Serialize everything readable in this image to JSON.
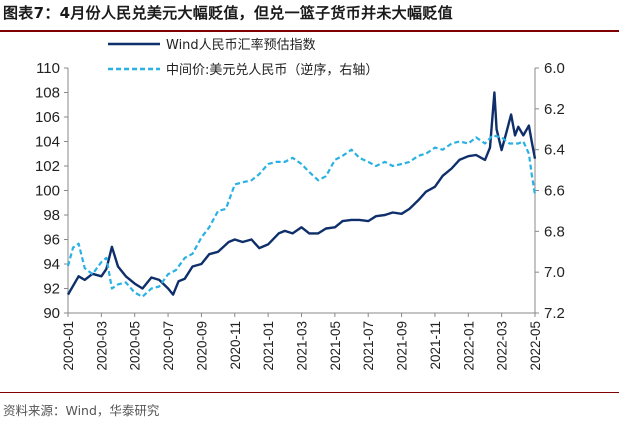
{
  "header": {
    "title": "图表7：4月份人民兑美元大幅贬值，但兑一篮子货币并未大幅贬值"
  },
  "footer": {
    "source": "资料来源：Wind，华泰研究"
  },
  "colors": {
    "primary_series": "#0f2f6b",
    "secondary_series": "#2ab1e3",
    "title_rule": "#7f0000"
  },
  "chart_data": {
    "type": "line",
    "title": "图表7：4月份人民兑美元大幅贬值，但兑一篮子货币并未大幅贬值",
    "legend_position": "top-center",
    "grid": false,
    "x_ticks": [
      "2020-01",
      "2020-03",
      "2020-05",
      "2020-07",
      "2020-09",
      "2020-11",
      "2021-01",
      "2021-03",
      "2021-05",
      "2021-07",
      "2021-09",
      "2021-11",
      "2022-01",
      "2022-03",
      "2022-05"
    ],
    "y_left": {
      "ticks": [
        90,
        92,
        94,
        96,
        98,
        100,
        102,
        104,
        106,
        108,
        110
      ],
      "range": [
        90,
        110
      ]
    },
    "y_right": {
      "ticks": [
        "6.0",
        "6.2",
        "6.4",
        "6.6",
        "6.8",
        "7.0",
        "7.2"
      ],
      "range": [
        6.0,
        7.2
      ],
      "inverted": true
    },
    "series": [
      {
        "name": "Wind人民币汇率预估指数",
        "axis": "left",
        "style": "solid",
        "points": [
          [
            "2020-01",
            91.5
          ],
          [
            "2020-01-20",
            93.0
          ],
          [
            "2020-02",
            92.7
          ],
          [
            "2020-02-15",
            93.2
          ],
          [
            "2020-03",
            93.0
          ],
          [
            "2020-03-10",
            93.6
          ],
          [
            "2020-03-20",
            95.4
          ],
          [
            "2020-04",
            93.8
          ],
          [
            "2020-04-15",
            93.0
          ],
          [
            "2020-05",
            92.4
          ],
          [
            "2020-05-15",
            92.0
          ],
          [
            "2020-06",
            92.9
          ],
          [
            "2020-06-15",
            92.7
          ],
          [
            "2020-07",
            92.0
          ],
          [
            "2020-07-10",
            91.5
          ],
          [
            "2020-07-20",
            92.6
          ],
          [
            "2020-08",
            92.8
          ],
          [
            "2020-08-15",
            93.8
          ],
          [
            "2020-09",
            94.0
          ],
          [
            "2020-09-15",
            94.8
          ],
          [
            "2020-10",
            95.0
          ],
          [
            "2020-10-20",
            95.8
          ],
          [
            "2020-11",
            96.0
          ],
          [
            "2020-11-15",
            95.8
          ],
          [
            "2020-12",
            96.0
          ],
          [
            "2020-12-15",
            95.3
          ],
          [
            "2021-01",
            95.6
          ],
          [
            "2021-01-20",
            96.5
          ],
          [
            "2021-02",
            96.7
          ],
          [
            "2021-02-15",
            96.5
          ],
          [
            "2021-03",
            97.0
          ],
          [
            "2021-03-15",
            96.5
          ],
          [
            "2021-04",
            96.5
          ],
          [
            "2021-04-15",
            96.9
          ],
          [
            "2021-05",
            97.0
          ],
          [
            "2021-05-15",
            97.5
          ],
          [
            "2021-06",
            97.6
          ],
          [
            "2021-06-15",
            97.6
          ],
          [
            "2021-07",
            97.5
          ],
          [
            "2021-07-15",
            97.9
          ],
          [
            "2021-08",
            98.0
          ],
          [
            "2021-08-15",
            98.2
          ],
          [
            "2021-09",
            98.1
          ],
          [
            "2021-09-15",
            98.5
          ],
          [
            "2021-10",
            99.2
          ],
          [
            "2021-10-15",
            99.9
          ],
          [
            "2021-11",
            100.3
          ],
          [
            "2021-11-15",
            101.2
          ],
          [
            "2021-12",
            101.8
          ],
          [
            "2021-12-15",
            102.5
          ],
          [
            "2022-01",
            102.8
          ],
          [
            "2022-01-15",
            102.9
          ],
          [
            "2022-02",
            102.5
          ],
          [
            "2022-02-10",
            103.5
          ],
          [
            "2022-02-18",
            108.0
          ],
          [
            "2022-02-22",
            105.0
          ],
          [
            "2022-03",
            103.3
          ],
          [
            "2022-03-10",
            104.8
          ],
          [
            "2022-03-18",
            106.2
          ],
          [
            "2022-03-25",
            104.5
          ],
          [
            "2022-04",
            105.2
          ],
          [
            "2022-04-10",
            104.5
          ],
          [
            "2022-04-20",
            105.3
          ],
          [
            "2022-04-25",
            104.0
          ],
          [
            "2022-05",
            102.6
          ]
        ]
      },
      {
        "name": "中间价:美元兑人民币（逆序，右轴）",
        "axis": "right",
        "style": "dashed",
        "points": [
          [
            "2020-01",
            6.97
          ],
          [
            "2020-01-10",
            6.88
          ],
          [
            "2020-01-20",
            6.86
          ],
          [
            "2020-02",
            6.98
          ],
          [
            "2020-02-15",
            7.01
          ],
          [
            "2020-03",
            6.95
          ],
          [
            "2020-03-10",
            6.93
          ],
          [
            "2020-03-20",
            7.08
          ],
          [
            "2020-04",
            7.06
          ],
          [
            "2020-04-15",
            7.05
          ],
          [
            "2020-05",
            7.1
          ],
          [
            "2020-05-15",
            7.12
          ],
          [
            "2020-06",
            7.08
          ],
          [
            "2020-06-15",
            7.07
          ],
          [
            "2020-07",
            7.01
          ],
          [
            "2020-07-15",
            6.99
          ],
          [
            "2020-08",
            6.93
          ],
          [
            "2020-08-15",
            6.91
          ],
          [
            "2020-09",
            6.83
          ],
          [
            "2020-09-15",
            6.78
          ],
          [
            "2020-10",
            6.7
          ],
          [
            "2020-10-15",
            6.69
          ],
          [
            "2020-11",
            6.57
          ],
          [
            "2020-11-15",
            6.56
          ],
          [
            "2020-12",
            6.55
          ],
          [
            "2020-12-15",
            6.52
          ],
          [
            "2021-01",
            6.47
          ],
          [
            "2021-01-15",
            6.46
          ],
          [
            "2021-02",
            6.46
          ],
          [
            "2021-02-15",
            6.44
          ],
          [
            "2021-03",
            6.47
          ],
          [
            "2021-03-15",
            6.51
          ],
          [
            "2021-04",
            6.55
          ],
          [
            "2021-04-15",
            6.53
          ],
          [
            "2021-05",
            6.45
          ],
          [
            "2021-05-15",
            6.43
          ],
          [
            "2021-06",
            6.4
          ],
          [
            "2021-06-15",
            6.44
          ],
          [
            "2021-07",
            6.46
          ],
          [
            "2021-07-15",
            6.48
          ],
          [
            "2021-08",
            6.46
          ],
          [
            "2021-08-15",
            6.48
          ],
          [
            "2021-09",
            6.47
          ],
          [
            "2021-09-15",
            6.46
          ],
          [
            "2021-10",
            6.43
          ],
          [
            "2021-10-15",
            6.42
          ],
          [
            "2021-11",
            6.39
          ],
          [
            "2021-11-15",
            6.4
          ],
          [
            "2021-12",
            6.37
          ],
          [
            "2021-12-15",
            6.36
          ],
          [
            "2022-01",
            6.37
          ],
          [
            "2022-01-15",
            6.34
          ],
          [
            "2022-02",
            6.37
          ],
          [
            "2022-02-15",
            6.33
          ],
          [
            "2022-03",
            6.34
          ],
          [
            "2022-03-15",
            6.37
          ],
          [
            "2022-04",
            6.37
          ],
          [
            "2022-04-10",
            6.36
          ],
          [
            "2022-04-20",
            6.42
          ],
          [
            "2022-04-25",
            6.52
          ],
          [
            "2022-05",
            6.62
          ]
        ]
      }
    ]
  }
}
